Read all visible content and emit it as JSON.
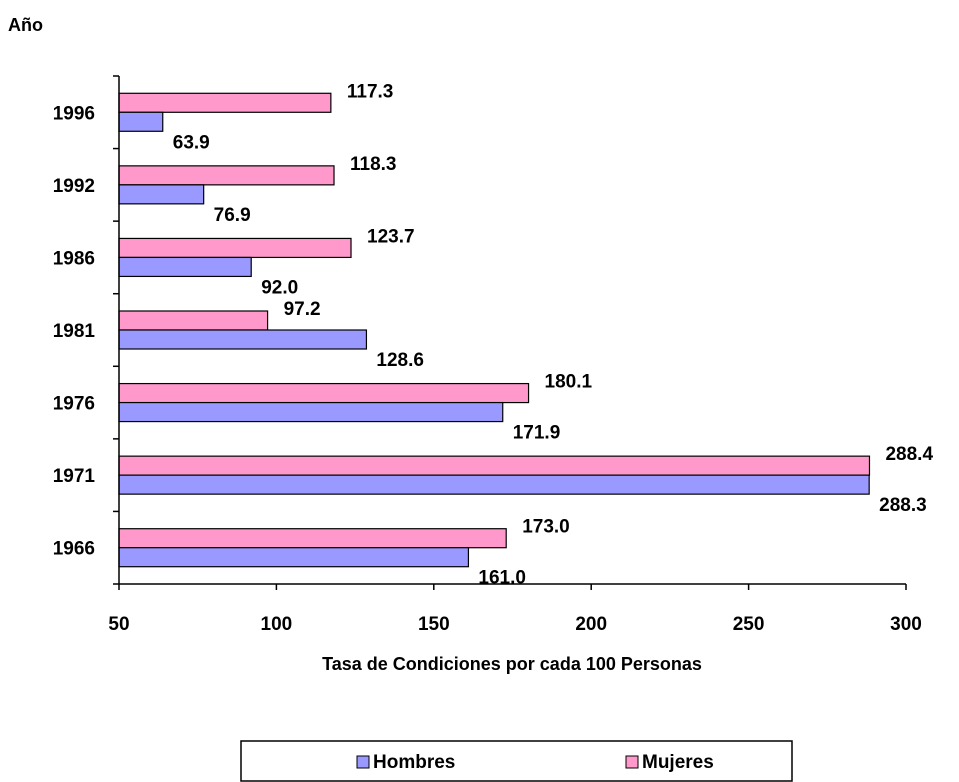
{
  "chart_data": {
    "type": "bar",
    "orientation": "horizontal",
    "title": "",
    "ylabel": "Año",
    "xlabel": "Tasa de Condiciones por cada 100 Personas",
    "categories": [
      "1966",
      "1971",
      "1976",
      "1981",
      "1986",
      "1992",
      "1996"
    ],
    "series": [
      {
        "name": "Hombres",
        "color": "#9999ff",
        "values": [
          161.0,
          288.3,
          171.9,
          128.6,
          92.0,
          76.9,
          63.9
        ],
        "labels": [
          "161.0",
          "288.3",
          "171.9",
          "128.6",
          "92.0",
          "76.9",
          "63.9"
        ]
      },
      {
        "name": "Mujeres",
        "color": "#ff99cc",
        "values": [
          173.0,
          288.4,
          180.1,
          97.2,
          123.7,
          118.3,
          117.3
        ],
        "labels": [
          "173.0",
          "288.4",
          "180.1",
          "97.2",
          "123.7",
          "118.3",
          "117.3"
        ]
      }
    ],
    "xlim": [
      50,
      300
    ],
    "xticks": [
      "50",
      "100",
      "150",
      "200",
      "250",
      "300"
    ],
    "grid": false,
    "legend": {
      "position": "bottom",
      "items": [
        "Hombres",
        "Mujeres"
      ]
    }
  }
}
